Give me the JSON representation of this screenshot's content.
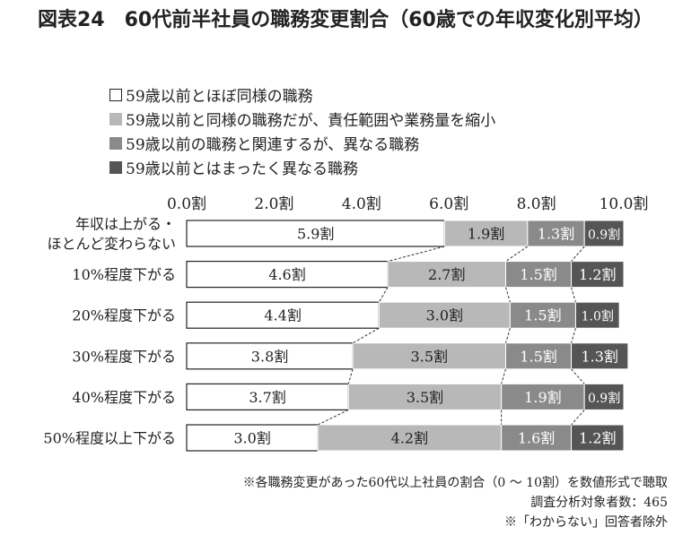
{
  "header": {
    "title": "図表24　60代前半社員の職務変更割合（60歳での年収変化別平均）"
  },
  "legend": {
    "items": [
      {
        "label": "59歳以前とほぼ同様の職務",
        "color": "#ffffff"
      },
      {
        "label": "59歳以前と同様の職務だが、責任範囲や業務量を縮小",
        "color": "#b8b8b8"
      },
      {
        "label": "59歳以前の職務と関連するが、異なる職務",
        "color": "#8a8a8a"
      },
      {
        "label": "59歳以前とはまったく異なる職務",
        "color": "#555555"
      }
    ]
  },
  "chart_data": {
    "type": "bar",
    "orientation": "horizontal",
    "stacked": true,
    "unit": "割",
    "xlim": [
      0,
      10
    ],
    "x_ticks": [
      "0.0割",
      "2.0割",
      "4.0割",
      "6.0割",
      "8.0割",
      "10.0割"
    ],
    "categories": [
      "年収は上がる・\nほとんど変わらない",
      "10%程度下がる",
      "20%程度下がる",
      "30%程度下がる",
      "40%程度下がる",
      "50%程度以上下がる"
    ],
    "series": [
      {
        "name": "59歳以前とほぼ同様の職務",
        "values": [
          5.9,
          4.6,
          4.4,
          3.8,
          3.7,
          3.0
        ],
        "labels": [
          "5.9割",
          "4.6割",
          "4.4割",
          "3.8割",
          "3.7割",
          "3.0割"
        ]
      },
      {
        "name": "59歳以前と同様の職務だが、責任範囲や業務量を縮小",
        "values": [
          1.9,
          2.7,
          3.0,
          3.5,
          3.5,
          4.2
        ],
        "labels": [
          "1.9割",
          "2.7割",
          "3.0割",
          "3.5割",
          "3.5割",
          "4.2割"
        ]
      },
      {
        "name": "59歳以前の職務と関連するが、異なる職務",
        "values": [
          1.3,
          1.5,
          1.5,
          1.5,
          1.9,
          1.6
        ],
        "labels": [
          "1.3割",
          "1.5割",
          "1.5割",
          "1.5割",
          "1.9割",
          "1.6割"
        ]
      },
      {
        "name": "59歳以前とはまったく異なる職務",
        "values": [
          0.9,
          1.2,
          1.0,
          1.3,
          0.9,
          1.2
        ],
        "labels": [
          "0.9割",
          "1.2割",
          "1.0割",
          "1.3割",
          "0.9割",
          "1.2割"
        ]
      }
    ],
    "connector_lines": "dashed",
    "grid": false
  },
  "footnotes": [
    "※各職務変更があった60代以上社員の割合（0 〜 10割）を数値形式で聴取",
    "調査分析対象者数：465",
    "※「わからない」回答者除外"
  ]
}
